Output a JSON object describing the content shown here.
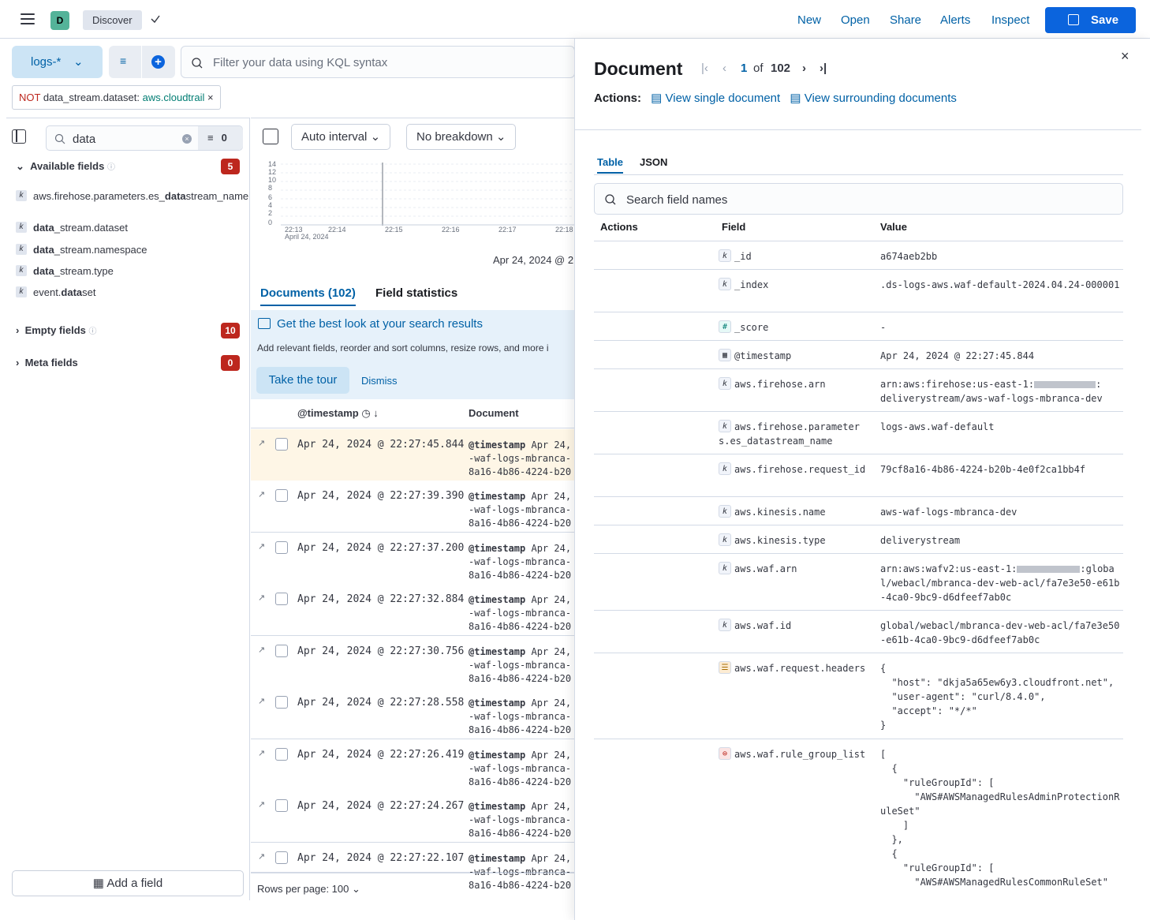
{
  "header": {
    "space_initial": "D",
    "app": "Discover",
    "links": [
      "New",
      "Open",
      "Share",
      "Alerts",
      "Inspect"
    ],
    "save": "Save"
  },
  "query": {
    "dataview": "logs-*",
    "placeholder": "Filter your data using KQL syntax",
    "filter_not": "NOT",
    "filter_field": "data_stream.dataset:",
    "filter_value": "aws.cloudtrail"
  },
  "sidebar": {
    "search_value": "data",
    "filter_count": "0",
    "available_label": "Available fields",
    "available_count": "5",
    "fields": [
      {
        "pre": "aws.firehose.parameters.es_",
        "hl": "data",
        "post": "stream_name"
      },
      {
        "pre": "",
        "hl": "data",
        "post": "_stream.dataset"
      },
      {
        "pre": "",
        "hl": "data",
        "post": "_stream.namespace"
      },
      {
        "pre": "",
        "hl": "data",
        "post": "_stream.type"
      },
      {
        "pre": "event.",
        "hl": "data",
        "post": "set"
      }
    ],
    "empty_label": "Empty fields",
    "empty_count": "10",
    "meta_label": "Meta fields",
    "meta_count": "0",
    "add_field": "Add a field"
  },
  "histogram": {
    "interval": "Auto interval",
    "breakdown": "No breakdown",
    "y_ticks": [
      "14",
      "12",
      "10",
      "8",
      "6",
      "4",
      "2",
      "0"
    ],
    "x_ticks": [
      "22:13",
      "22:14",
      "22:15",
      "22:16",
      "22:17",
      "22:18"
    ],
    "x_date": "April 24, 2024",
    "range_label": "Apr 24, 2024 @ 2"
  },
  "tabs": {
    "documents": "Documents (102)",
    "stats": "Field statistics"
  },
  "callout": {
    "title": "Get the best look at your search results",
    "body": "Add relevant fields, reorder and sort columns, resize rows, and more i",
    "tour": "Take the tour",
    "dismiss": "Dismiss"
  },
  "table": {
    "col_ts": "@timestamp",
    "col_doc": "Document",
    "rows": [
      {
        "ts": "Apr 24, 2024 @ 22:27:45.844"
      },
      {
        "ts": "Apr 24, 2024 @ 22:27:39.390"
      },
      {
        "ts": "Apr 24, 2024 @ 22:27:37.200"
      },
      {
        "ts": "Apr 24, 2024 @ 22:27:32.884"
      },
      {
        "ts": "Apr 24, 2024 @ 22:27:30.756"
      },
      {
        "ts": "Apr 24, 2024 @ 22:27:28.558"
      },
      {
        "ts": "Apr 24, 2024 @ 22:27:26.419"
      },
      {
        "ts": "Apr 24, 2024 @ 22:27:24.267"
      },
      {
        "ts": "Apr 24, 2024 @ 22:27:22.107"
      }
    ],
    "doc_key": "@timestamp",
    "doc_l1": " Apr 24,",
    "doc_l2": "-waf-logs-mbranca-",
    "doc_l3": "8a16-4b86-4224-b20",
    "rows_per_page": "Rows per page: 100"
  },
  "flyout": {
    "title": "Document",
    "current": "1",
    "of": "of",
    "total": "102",
    "actions_label": "Actions:",
    "view_single": "View single document",
    "view_surrounding": "View surrounding documents",
    "tab_table": "Table",
    "tab_json": "JSON",
    "search_placeholder": "Search field names",
    "col_actions": "Actions",
    "col_field": "Field",
    "col_value": "Value",
    "rows": [
      {
        "type": "k",
        "field": "_id",
        "value": "a674aeb2bb"
      },
      {
        "type": "k",
        "field": "_index",
        "value": ".ds-logs-aws.waf-default-2024.04.24-000001"
      },
      {
        "type": "#",
        "field": "_score",
        "value": "-"
      },
      {
        "type": "date",
        "field": "@timestamp",
        "value": "Apr 24, 2024 @ 22:27:45.844"
      },
      {
        "type": "k",
        "field": "aws.firehose.arn",
        "value_a": "arn:aws:firehose:us-east-1:",
        "value_b": ":",
        "value_c": "deliverystream/aws-waf-logs-mbranca-dev"
      },
      {
        "type": "k",
        "field": "aws.firehose.parameters.es_datastream_name",
        "value": "logs-aws.waf-default"
      },
      {
        "type": "k",
        "field": "aws.firehose.request_id",
        "value": "79cf8a16-4b86-4224-b20b-4e0f2ca1bb4f"
      },
      {
        "type": "k",
        "field": "aws.kinesis.name",
        "value": "aws-waf-logs-mbranca-dev"
      },
      {
        "type": "k",
        "field": "aws.kinesis.type",
        "value": "deliverystream"
      },
      {
        "type": "k",
        "field": "aws.waf.arn",
        "value_a": "arn:aws:wafv2:us-east-1:",
        "value_b": ":global/webacl/mbranca-dev-web-acl/fa7e3e50-e61b-4ca0-9bc9-d6dfeef7ab0c"
      },
      {
        "type": "k",
        "field": "aws.waf.id",
        "value": "global/webacl/mbranca-dev-web-acl/fa7e3e50-e61b-4ca0-9bc9-d6dfeef7ab0c"
      },
      {
        "type": "obj",
        "field": "aws.waf.request.headers",
        "value": "{\n  \"host\": \"dkja5a65ew6y3.cloudfront.net\",\n  \"user-agent\": \"curl/8.4.0\",\n  \"accept\": \"*/*\"\n}"
      },
      {
        "type": "nested",
        "field": "aws.waf.rule_group_list",
        "value": "[\n  {\n    \"ruleGroupId\": [\n      \"AWS#AWSManagedRulesAdminProtectionRuleSet\"\n    ]\n  },\n  {\n    \"ruleGroupId\": [\n      \"AWS#AWSManagedRulesCommonRuleSet\""
      }
    ]
  },
  "colors": {
    "primary": "#0b64dd",
    "link": "#0061a6",
    "danger": "#bd271e",
    "success": "#017d73"
  }
}
